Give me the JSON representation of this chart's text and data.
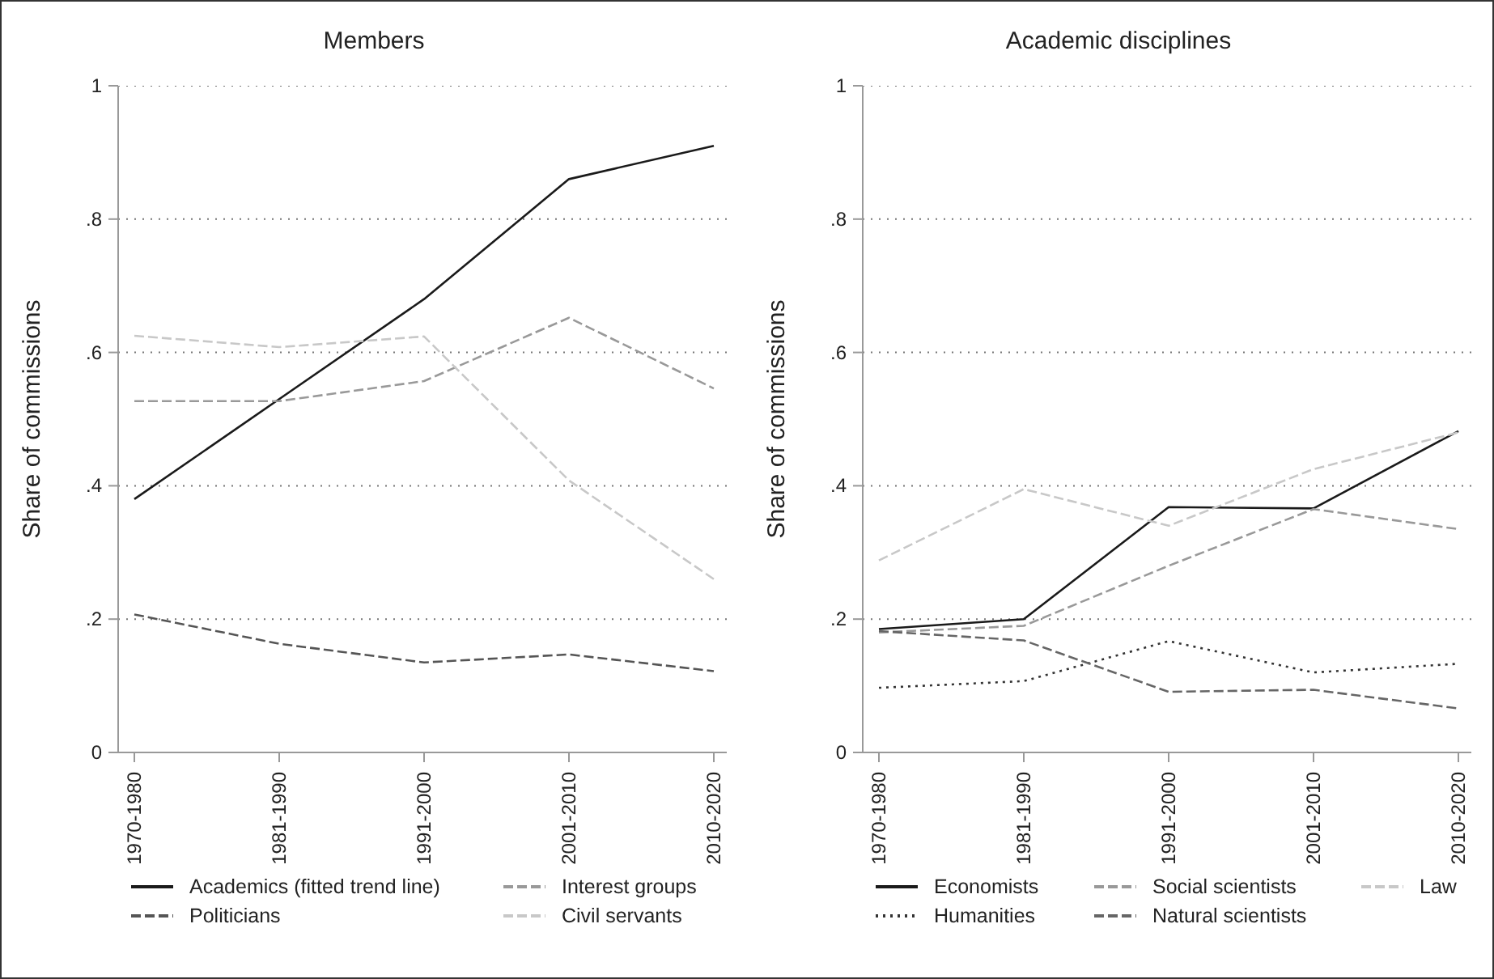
{
  "chart_data": [
    {
      "type": "line",
      "title": "Members",
      "ylabel": "Share of commissions",
      "categories": [
        "1970-1980",
        "1981-1990",
        "1991-2000",
        "2001-2010",
        "2010-2020"
      ],
      "ylim": [
        0,
        1
      ],
      "yticks": [
        {
          "value": 0,
          "label": "0"
        },
        {
          "value": 0.2,
          "label": ".2"
        },
        {
          "value": 0.4,
          "label": ".4"
        },
        {
          "value": 0.6,
          "label": ".6"
        },
        {
          "value": 0.8,
          "label": ".8"
        },
        {
          "value": 1,
          "label": "1"
        }
      ],
      "grid": "y",
      "legend": "bottom",
      "marker": "none",
      "series": [
        {
          "name": "Academics (fitted trend line)",
          "color": "#1a1a1a",
          "line_style": "solid",
          "values": [
            0.38,
            0.53,
            0.68,
            0.86,
            0.91
          ]
        },
        {
          "name": "Interest groups",
          "color": "#999999",
          "line_style": "dashed",
          "values": [
            0.527,
            0.527,
            0.557,
            0.652,
            0.546
          ]
        },
        {
          "name": "Politicians",
          "color": "#555555",
          "line_style": "dashed",
          "values": [
            0.207,
            0.163,
            0.135,
            0.147,
            0.122
          ]
        },
        {
          "name": "Civil servants",
          "color": "#c8c8c8",
          "line_style": "dashed",
          "values": [
            0.625,
            0.608,
            0.624,
            0.408,
            0.26
          ]
        }
      ]
    },
    {
      "type": "line",
      "title": "Academic disciplines",
      "ylabel": "Share of commissions",
      "categories": [
        "1970-1980",
        "1981-1990",
        "1991-2000",
        "2001-2010",
        "2010-2020"
      ],
      "ylim": [
        0,
        1
      ],
      "yticks": [
        {
          "value": 0,
          "label": "0"
        },
        {
          "value": 0.2,
          "label": ".2"
        },
        {
          "value": 0.4,
          "label": ".4"
        },
        {
          "value": 0.6,
          "label": ".6"
        },
        {
          "value": 0.8,
          "label": ".8"
        },
        {
          "value": 1,
          "label": "1"
        }
      ],
      "grid": "y",
      "legend": "bottom",
      "marker": "none",
      "series": [
        {
          "name": "Economists",
          "color": "#1a1a1a",
          "line_style": "solid",
          "values": [
            0.185,
            0.2,
            0.368,
            0.366,
            0.482
          ]
        },
        {
          "name": "Social scientists",
          "color": "#999999",
          "line_style": "dashed",
          "values": [
            0.18,
            0.19,
            0.28,
            0.365,
            0.335
          ]
        },
        {
          "name": "Law",
          "color": "#c8c8c8",
          "line_style": "dashed",
          "values": [
            0.288,
            0.395,
            0.34,
            0.425,
            0.48
          ]
        },
        {
          "name": "Humanities",
          "color": "#333333",
          "line_style": "dotted",
          "values": [
            0.097,
            0.107,
            0.167,
            0.12,
            0.133
          ]
        },
        {
          "name": "Natural scientists",
          "color": "#666666",
          "line_style": "dashed",
          "values": [
            0.182,
            0.168,
            0.091,
            0.094,
            0.066
          ]
        }
      ]
    }
  ]
}
